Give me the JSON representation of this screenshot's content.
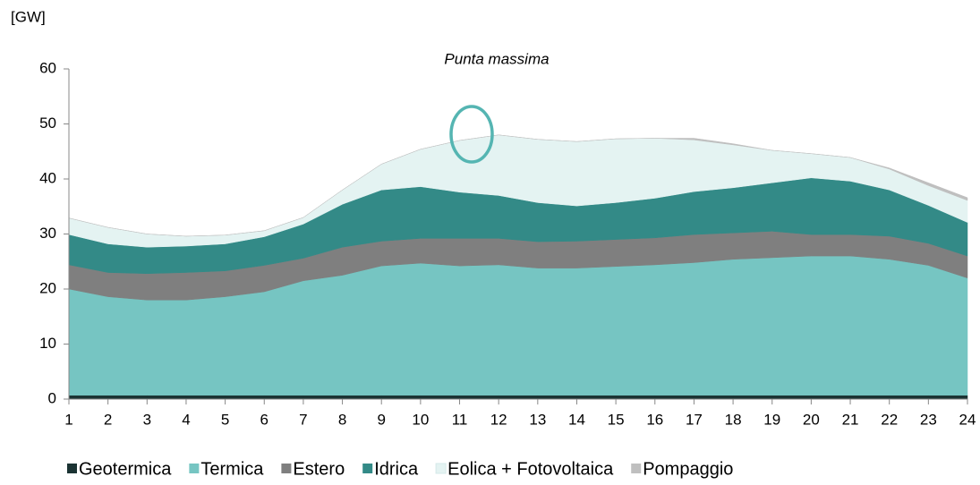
{
  "chart_data": {
    "type": "stacked_area",
    "title": "Punta massima",
    "ylabel": "[GW]",
    "x": [
      1,
      2,
      3,
      4,
      5,
      6,
      7,
      8,
      9,
      10,
      11,
      12,
      13,
      14,
      15,
      16,
      17,
      18,
      19,
      20,
      21,
      22,
      23,
      24
    ],
    "xlim": [
      1,
      24
    ],
    "xticks": [
      1,
      2,
      3,
      4,
      5,
      6,
      7,
      8,
      9,
      10,
      11,
      12,
      13,
      14,
      15,
      16,
      17,
      18,
      19,
      20,
      21,
      22,
      23,
      24
    ],
    "ylim": [
      0,
      60
    ],
    "yticks": [
      0,
      10,
      20,
      30,
      40,
      50,
      60
    ],
    "series": [
      {
        "name": "Geotermica",
        "color": "#1b3333",
        "values": [
          0.7,
          0.7,
          0.7,
          0.7,
          0.7,
          0.7,
          0.7,
          0.7,
          0.7,
          0.7,
          0.7,
          0.7,
          0.7,
          0.7,
          0.7,
          0.7,
          0.7,
          0.7,
          0.7,
          0.7,
          0.7,
          0.7,
          0.7,
          0.7
        ]
      },
      {
        "name": "Termica",
        "color": "#76c5c2",
        "values": [
          19.3,
          17.9,
          17.3,
          17.3,
          17.9,
          18.8,
          20.8,
          21.8,
          23.5,
          24,
          23.5,
          23.7,
          23.1,
          23.1,
          23.4,
          23.7,
          24.1,
          24.7,
          25,
          25.3,
          25.3,
          24.7,
          23.6,
          21.3
        ]
      },
      {
        "name": "Estero",
        "color": "#7f7f7f",
        "values": [
          4.4,
          4.4,
          4.8,
          5,
          4.7,
          4.8,
          4.1,
          5.1,
          4.5,
          4.5,
          5,
          4.8,
          4.8,
          4.9,
          4.9,
          4.9,
          5.1,
          4.8,
          4.8,
          3.9,
          3.9,
          4.2,
          4,
          4
        ]
      },
      {
        "name": "Idrica",
        "color": "#338a87",
        "values": [
          5.5,
          5.2,
          4.8,
          4.8,
          4.9,
          5.2,
          6.2,
          7.8,
          9.3,
          9.4,
          8.4,
          7.8,
          7.1,
          6.4,
          6.7,
          7.2,
          7.8,
          8.2,
          8.8,
          10.3,
          9.7,
          8.4,
          6.9,
          6.1
        ]
      },
      {
        "name": "Eolica + Fotovoltaica",
        "color": "#e4f3f2",
        "values": [
          3,
          3,
          2.4,
          1.8,
          1.6,
          1.1,
          1.2,
          2.6,
          4.7,
          6.8,
          9.4,
          11,
          11.5,
          11.7,
          11.6,
          10.9,
          9.4,
          7.8,
          5.9,
          4.4,
          4.3,
          3.8,
          3.6,
          4
        ]
      },
      {
        "name": "Pompaggio",
        "color": "#bfbfbf",
        "values": [
          0,
          0,
          0,
          0,
          0,
          0,
          0,
          0,
          0,
          0,
          0,
          0,
          0,
          0,
          0,
          0,
          0.3,
          0.2,
          0,
          0,
          0,
          0.2,
          0.5,
          0.5
        ]
      }
    ]
  }
}
